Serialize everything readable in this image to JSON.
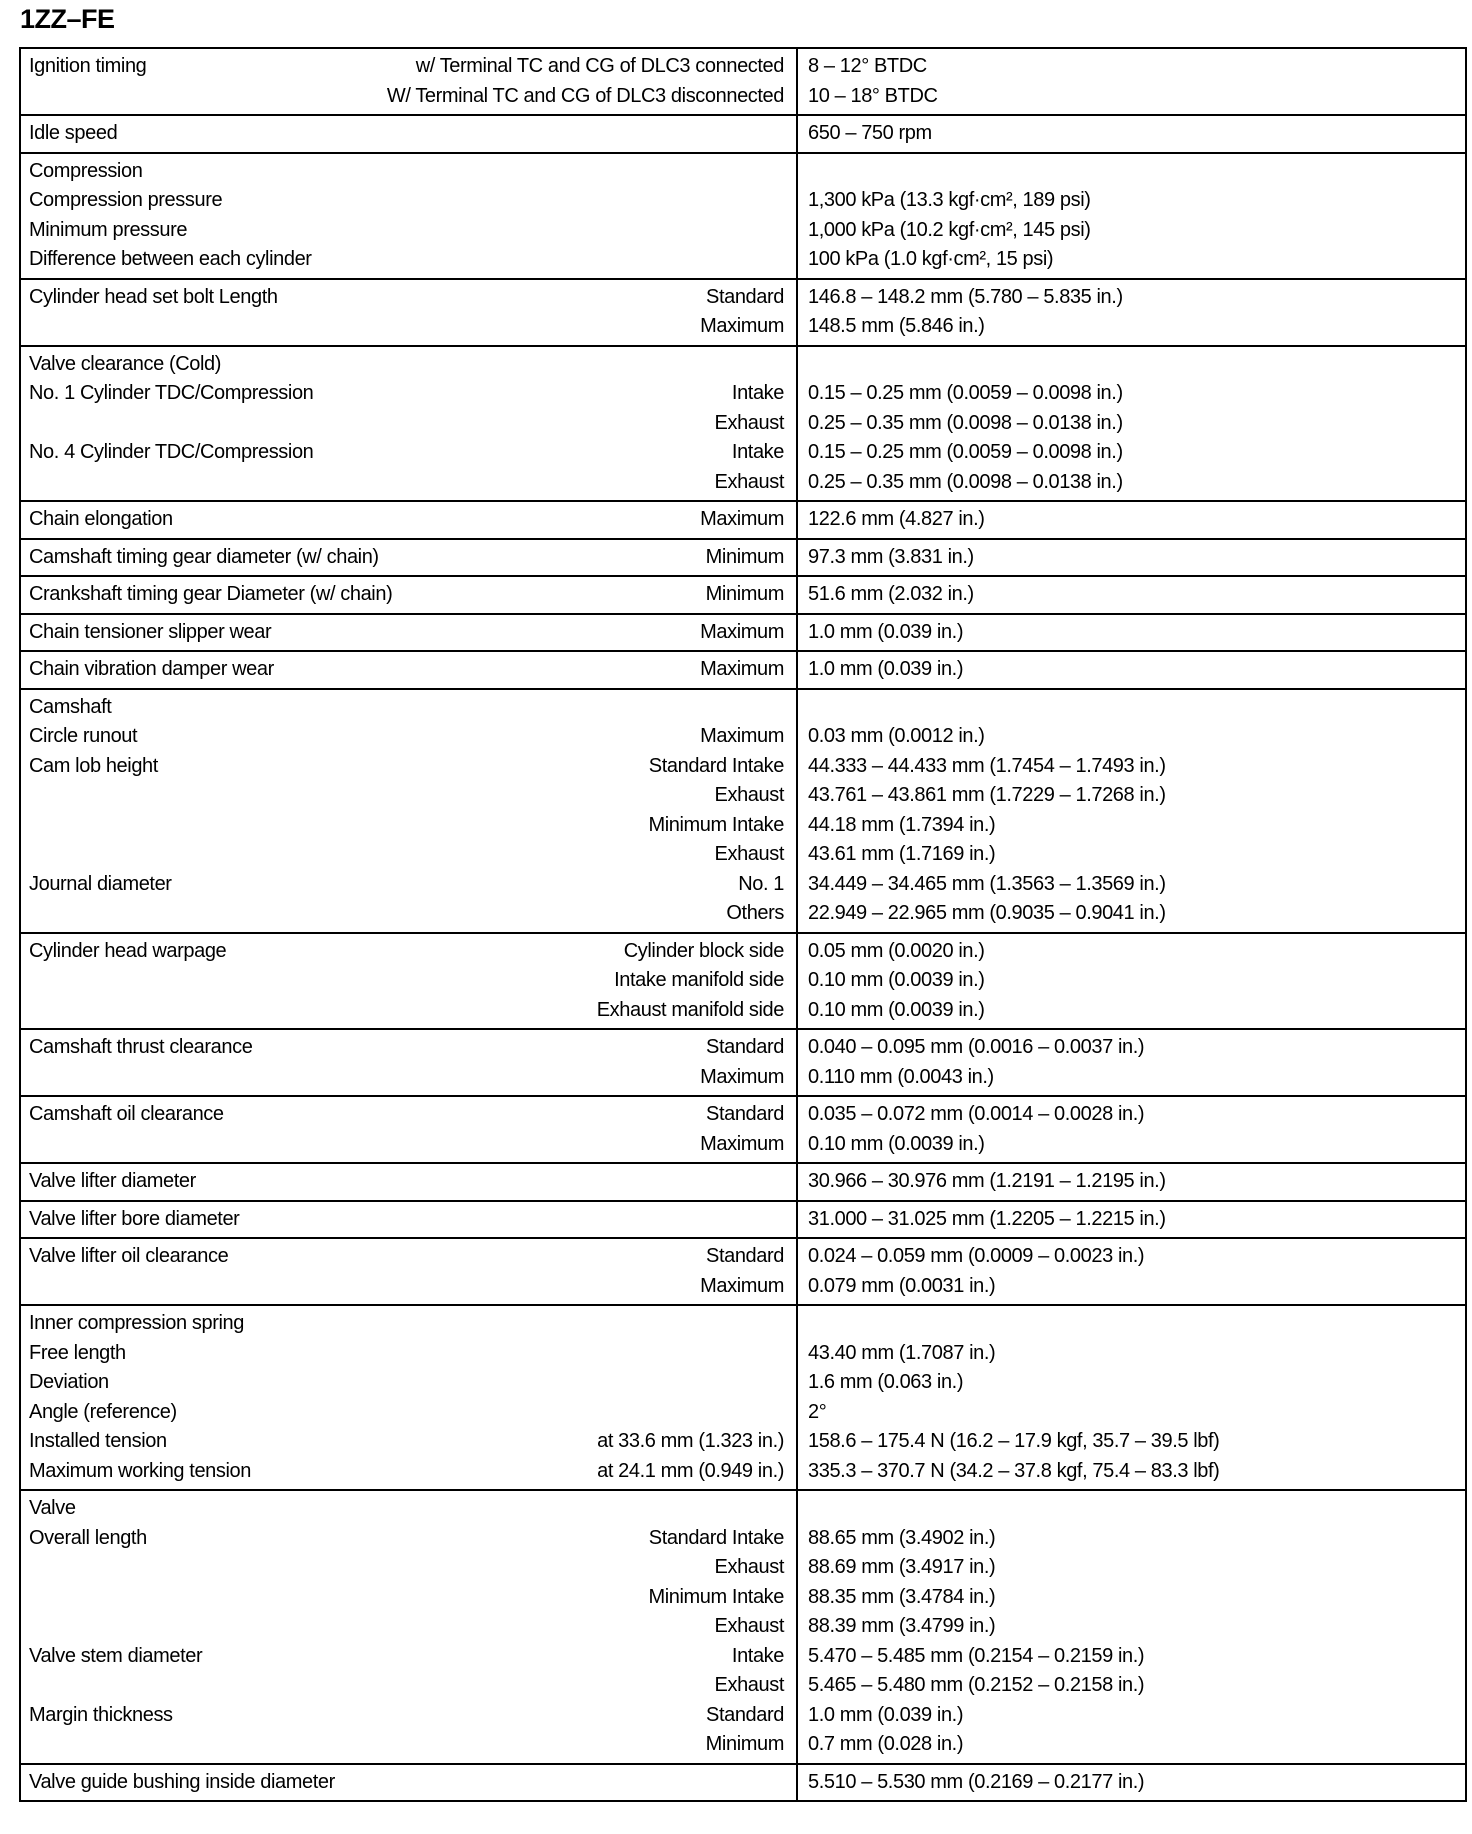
{
  "title": "1ZZ–FE",
  "groups": [
    {
      "rows": [
        [
          "Ignition timing",
          "w/ Terminal TC and CG of DLC3 connected",
          "8 – 12° BTDC"
        ],
        [
          "",
          "W/ Terminal TC and CG of DLC3 disconnected",
          "10 – 18° BTDC"
        ]
      ]
    },
    {
      "rows": [
        [
          "Idle speed",
          "",
          "650 – 750 rpm"
        ]
      ]
    },
    {
      "rows": [
        [
          "Compression",
          "",
          ""
        ],
        [
          "Compression pressure",
          "",
          "1,300 kPa (13.3 kgf·cm², 189 psi)"
        ],
        [
          "Minimum pressure",
          "",
          "1,000 kPa (10.2 kgf·cm², 145 psi)"
        ],
        [
          "Difference between each cylinder",
          "",
          "100 kPa (1.0 kgf·cm², 15 psi)"
        ]
      ]
    },
    {
      "rows": [
        [
          "Cylinder head set bolt Length",
          "Standard",
          "146.8 – 148.2 mm (5.780 – 5.835 in.)"
        ],
        [
          "",
          "Maximum",
          "148.5 mm (5.846 in.)"
        ]
      ]
    },
    {
      "rows": [
        [
          "Valve clearance (Cold)",
          "",
          ""
        ],
        [
          "No. 1 Cylinder TDC/Compression",
          "Intake",
          "0.15 – 0.25 mm (0.0059 – 0.0098 in.)"
        ],
        [
          "",
          "Exhaust",
          "0.25 – 0.35 mm (0.0098 – 0.0138 in.)"
        ],
        [
          "No. 4 Cylinder TDC/Compression",
          "Intake",
          "0.15 – 0.25 mm (0.0059 – 0.0098 in.)"
        ],
        [
          "",
          "Exhaust",
          "0.25 – 0.35 mm (0.0098 – 0.0138 in.)"
        ]
      ]
    },
    {
      "rows": [
        [
          "Chain elongation",
          "Maximum",
          "122.6 mm (4.827 in.)"
        ]
      ]
    },
    {
      "rows": [
        [
          "Camshaft timing gear diameter (w/ chain)",
          "Minimum",
          "97.3 mm (3.831 in.)"
        ]
      ]
    },
    {
      "rows": [
        [
          "Crankshaft timing gear Diameter (w/ chain)",
          "Minimum",
          "51.6 mm (2.032 in.)"
        ]
      ]
    },
    {
      "rows": [
        [
          "Chain tensioner slipper wear",
          "Maximum",
          "1.0 mm (0.039 in.)"
        ]
      ]
    },
    {
      "rows": [
        [
          "Chain vibration damper wear",
          "Maximum",
          "1.0 mm (0.039 in.)"
        ]
      ]
    },
    {
      "rows": [
        [
          "Camshaft",
          "",
          ""
        ],
        [
          "Circle runout",
          "Maximum",
          "0.03 mm (0.0012 in.)"
        ],
        [
          "Cam lob height",
          "Standard Intake",
          "44.333 – 44.433 mm (1.7454 – 1.7493 in.)"
        ],
        [
          "",
          "Exhaust",
          "43.761 – 43.861 mm (1.7229 – 1.7268 in.)"
        ],
        [
          "",
          "Minimum Intake",
          "44.18 mm (1.7394 in.)"
        ],
        [
          "",
          "Exhaust",
          "43.61 mm (1.7169 in.)"
        ],
        [
          "Journal diameter",
          "No. 1",
          "34.449 – 34.465 mm (1.3563 – 1.3569 in.)"
        ],
        [
          "",
          "Others",
          "22.949 – 22.965 mm (0.9035 – 0.9041 in.)"
        ]
      ]
    },
    {
      "rows": [
        [
          "Cylinder head warpage",
          "Cylinder block side",
          "0.05 mm (0.0020 in.)"
        ],
        [
          "",
          "Intake manifold side",
          "0.10 mm (0.0039 in.)"
        ],
        [
          "",
          "Exhaust manifold side",
          "0.10 mm (0.0039 in.)"
        ]
      ]
    },
    {
      "rows": [
        [
          "Camshaft thrust clearance",
          "Standard",
          "0.040 – 0.095 mm (0.0016 – 0.0037 in.)"
        ],
        [
          "",
          "Maximum",
          "0.110 mm (0.0043 in.)"
        ]
      ]
    },
    {
      "rows": [
        [
          "Camshaft oil clearance",
          "Standard",
          "0.035 – 0.072 mm (0.0014 – 0.0028 in.)"
        ],
        [
          "",
          "Maximum",
          "0.10 mm (0.0039 in.)"
        ]
      ]
    },
    {
      "rows": [
        [
          "Valve lifter diameter",
          "",
          "30.966 – 30.976 mm (1.2191 – 1.2195 in.)"
        ]
      ]
    },
    {
      "rows": [
        [
          "Valve lifter bore diameter",
          "",
          "31.000 – 31.025 mm (1.2205 – 1.2215 in.)"
        ]
      ]
    },
    {
      "rows": [
        [
          "Valve lifter oil clearance",
          "Standard",
          "0.024 – 0.059 mm (0.0009 – 0.0023 in.)"
        ],
        [
          "",
          "Maximum",
          "0.079 mm (0.0031 in.)"
        ]
      ]
    },
    {
      "rows": [
        [
          "Inner compression spring",
          "",
          ""
        ],
        [
          "Free length",
          "",
          "43.40 mm (1.7087 in.)"
        ],
        [
          "Deviation",
          "",
          "1.6 mm (0.063 in.)"
        ],
        [
          "Angle (reference)",
          "",
          "2°"
        ],
        [
          "Installed tension",
          "at 33.6 mm (1.323 in.)",
          "158.6 – 175.4 N (16.2 – 17.9 kgf, 35.7 – 39.5 lbf)"
        ],
        [
          "Maximum working tension",
          "at 24.1 mm (0.949 in.)",
          "335.3 – 370.7 N (34.2 – 37.8 kgf, 75.4 – 83.3 lbf)"
        ]
      ]
    },
    {
      "rows": [
        [
          "Valve",
          "",
          ""
        ],
        [
          "Overall length",
          "Standard Intake",
          "88.65 mm (3.4902 in.)"
        ],
        [
          "",
          "Exhaust",
          "88.69 mm (3.4917 in.)"
        ],
        [
          "",
          "Minimum Intake",
          "88.35 mm (3.4784 in.)"
        ],
        [
          "",
          "Exhaust",
          "88.39 mm (3.4799 in.)"
        ],
        [
          "Valve stem diameter",
          "Intake",
          "5.470 – 5.485 mm (0.2154 – 0.2159 in.)"
        ],
        [
          "",
          "Exhaust",
          "5.465 – 5.480 mm (0.2152 – 0.2158 in.)"
        ],
        [
          "Margin thickness",
          "Standard",
          "1.0 mm (0.039 in.)"
        ],
        [
          "",
          "Minimum",
          "0.7 mm (0.028 in.)"
        ]
      ]
    },
    {
      "rows": [
        [
          "Valve guide bushing inside diameter",
          "",
          "5.510 – 5.530 mm (0.2169 – 0.2177 in.)"
        ]
      ]
    }
  ]
}
